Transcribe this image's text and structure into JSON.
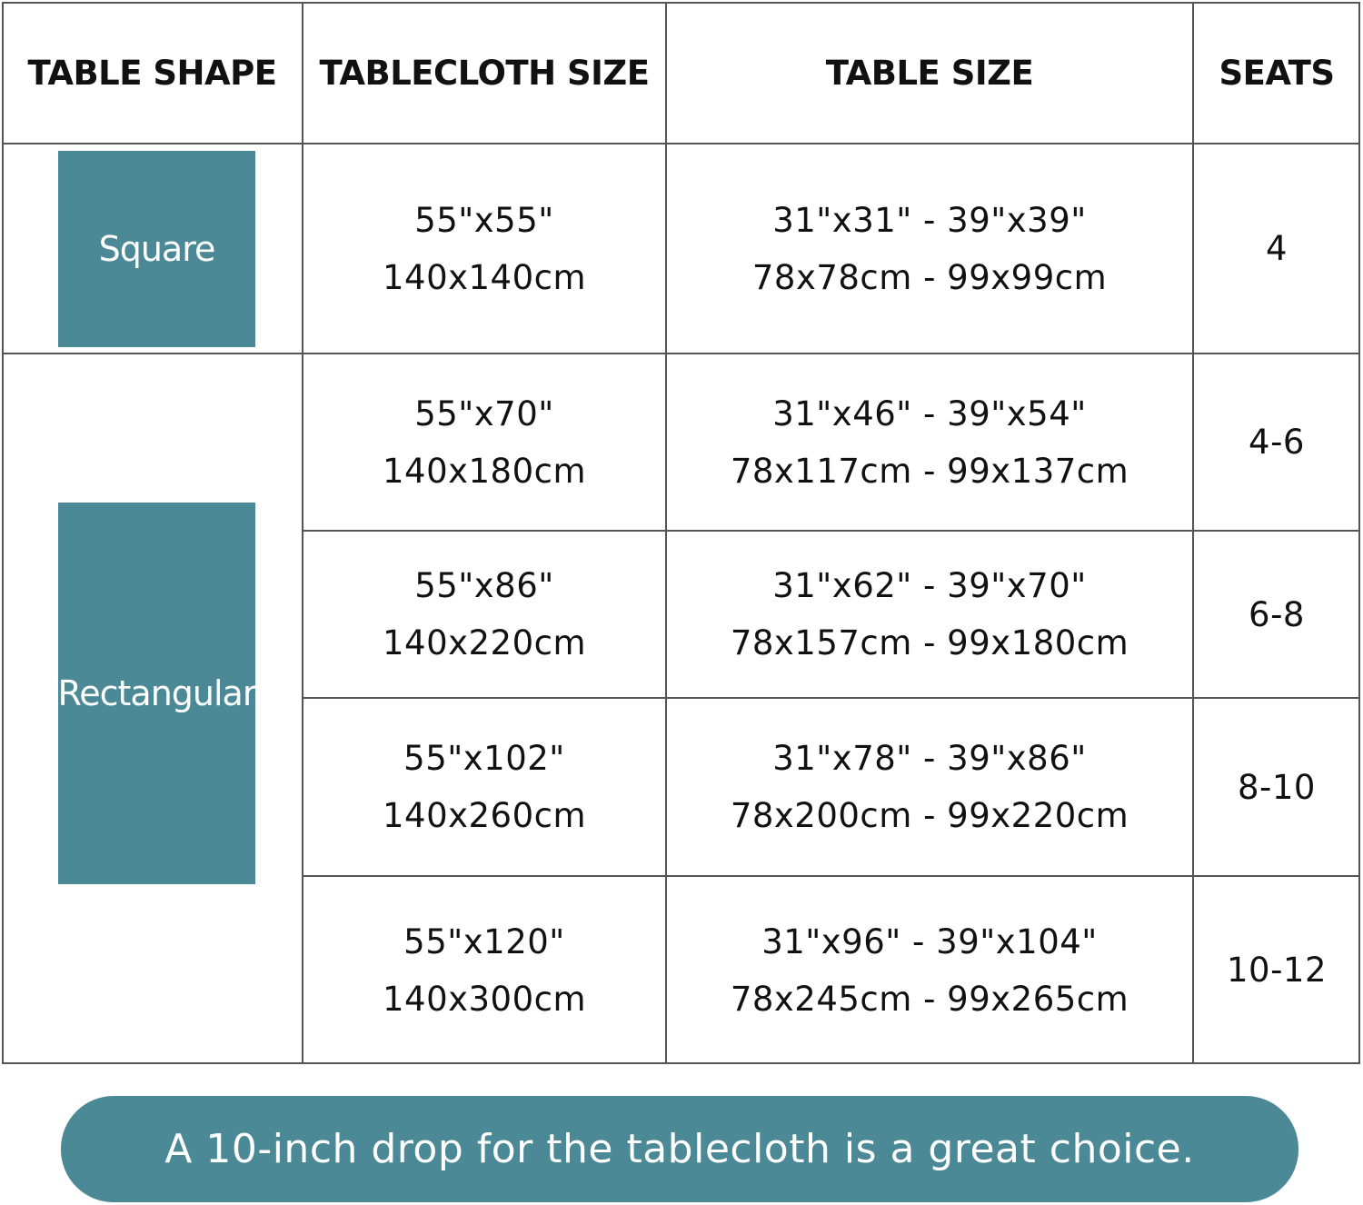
{
  "headers": [
    "TABLE SHAPE",
    "TABLECLOTH SIZE",
    "TABLE SIZE",
    "SEATS"
  ],
  "shapes": {
    "square": "Square",
    "rectangular": "Rectangular"
  },
  "accent_color": "#4a8995",
  "rows": [
    {
      "cloth_in": "55\"x55\"",
      "cloth_cm": "140x140cm",
      "table_in": "31\"x31\" - 39\"x39\"",
      "table_cm": "78x78cm - 99x99cm",
      "seats": "4"
    },
    {
      "cloth_in": "55\"x70\"",
      "cloth_cm": "140x180cm",
      "table_in": "31\"x46\" - 39\"x54\"",
      "table_cm": "78x117cm - 99x137cm",
      "seats": "4-6"
    },
    {
      "cloth_in": "55\"x86\"",
      "cloth_cm": "140x220cm",
      "table_in": "31\"x62\" - 39\"x70\"",
      "table_cm": "78x157cm - 99x180cm",
      "seats": "6-8"
    },
    {
      "cloth_in": "55\"x102\"",
      "cloth_cm": "140x260cm",
      "table_in": "31\"x78\" - 39\"x86\"",
      "table_cm": "78x200cm - 99x220cm",
      "seats": "8-10"
    },
    {
      "cloth_in": "55\"x120\"",
      "cloth_cm": "140x300cm",
      "table_in": "31\"x96\" - 39\"x104\"",
      "table_cm": "78x245cm - 99x265cm",
      "seats": "10-12"
    }
  ],
  "footer_note": "A 10-inch drop for the tablecloth is a great choice."
}
